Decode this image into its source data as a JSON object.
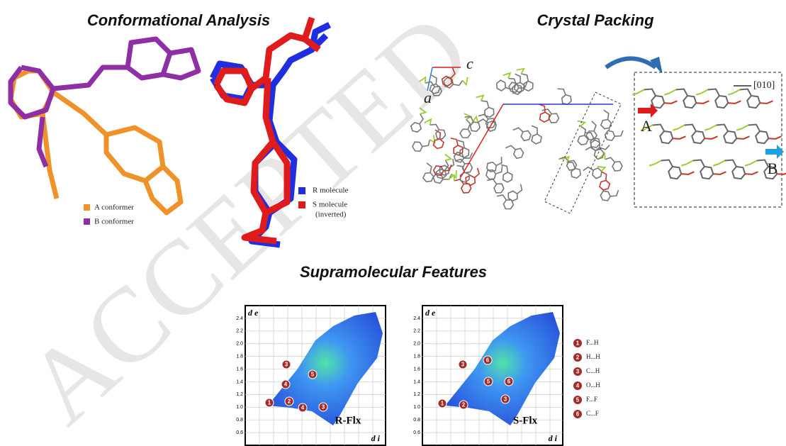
{
  "watermark": "ACCEPTED",
  "conformational": {
    "title": "Conformational Analysis",
    "legend_left": [
      "A conformer",
      "B conformer"
    ],
    "legend_right": [
      "R molecule",
      "S molecule",
      "(inverted)"
    ]
  },
  "crystal": {
    "title": "Crystal Packing",
    "axis_c": "c",
    "axis_a": "a",
    "direction": "[010]",
    "label_a": "A",
    "label_b": "B"
  },
  "supramolecular": {
    "title": "Supramolecular Features",
    "ylim": [
      0.4,
      2.6
    ],
    "yticks": [
      0.6,
      0.8,
      {
        "value": 1,
        "label": "1.0"
      },
      1.2,
      1.4,
      1.6,
      1.8,
      {
        "value": 2,
        "label": "2.0"
      },
      2.2,
      2.4
    ],
    "plots": [
      {
        "name": "R-Flx",
        "y_label": "d e",
        "x_label": "d i",
        "markers": [
          "1",
          "2",
          "4",
          "3",
          "4",
          "3",
          "5"
        ]
      },
      {
        "name": "S-Flx",
        "y_label": "d e",
        "x_label": "d i",
        "markers": [
          "1",
          "2",
          "3",
          "5",
          "6",
          "6",
          "3"
        ]
      }
    ],
    "legend": [
      {
        "number": "1",
        "label": "F...H"
      },
      {
        "number": "2",
        "label": "H...H"
      },
      {
        "number": "3",
        "label": "C...H"
      },
      {
        "number": "4",
        "label": "O...H"
      },
      {
        "number": "5",
        "label": "F...F"
      },
      {
        "number": "6",
        "label": "C...F"
      }
    ]
  }
}
